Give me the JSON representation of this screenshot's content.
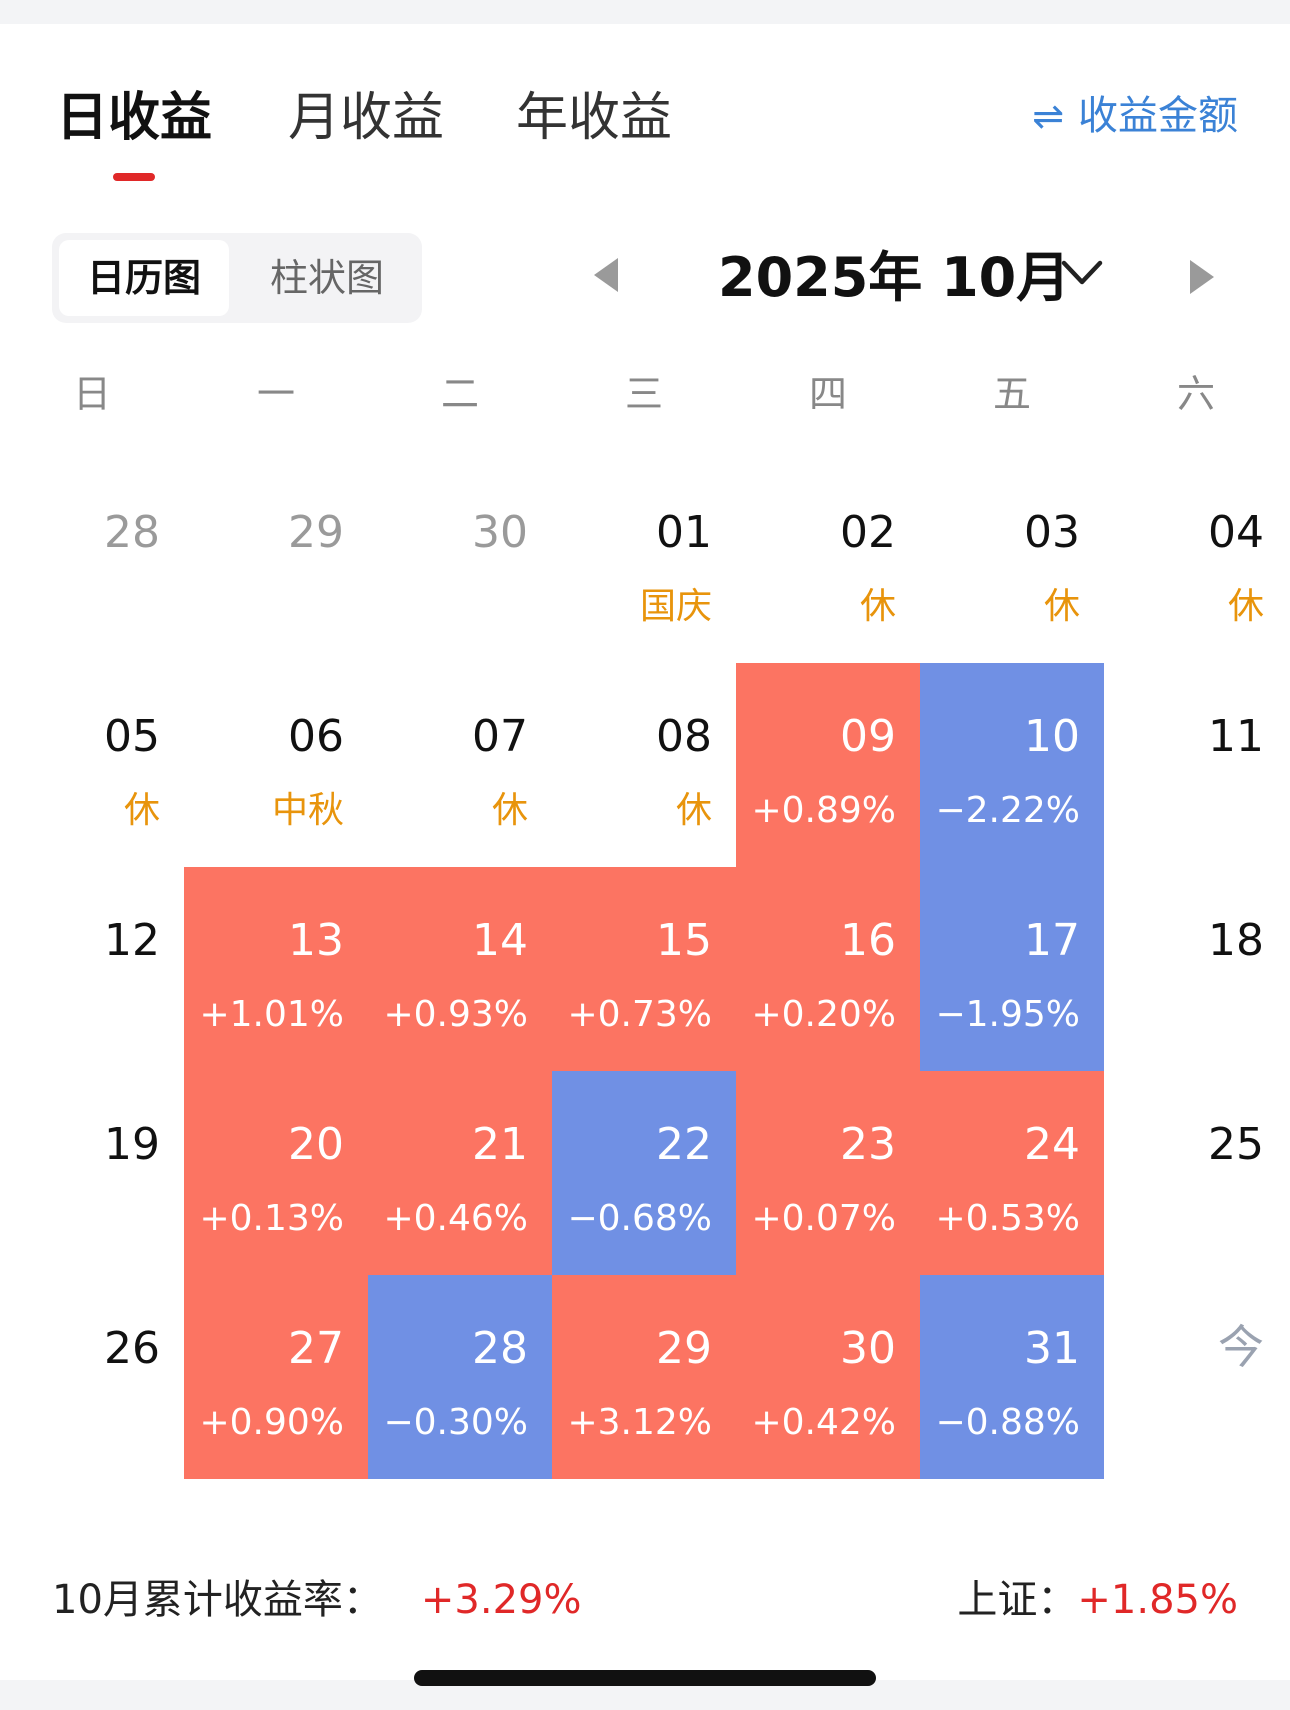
{
  "tabs": [
    {
      "label": "日收益",
      "active": true
    },
    {
      "label": "月收益",
      "active": false
    },
    {
      "label": "年收益",
      "active": false
    }
  ],
  "toggle_amount": {
    "icon": "swap-icon",
    "glyph": "⇌",
    "label": "收益金额"
  },
  "view_switch": {
    "calendar": "日历图",
    "bar": "柱状图"
  },
  "month_nav": {
    "title": "2025年 10月"
  },
  "weekdays": [
    "日",
    "一",
    "二",
    "三",
    "四",
    "五",
    "六"
  ],
  "calendar": {
    "rows": [
      [
        {
          "day": "28",
          "sub": "",
          "kind": "dim"
        },
        {
          "day": "29",
          "sub": "",
          "kind": "dim"
        },
        {
          "day": "30",
          "sub": "",
          "kind": "dim"
        },
        {
          "day": "01",
          "sub": "国庆",
          "kind": "holiday"
        },
        {
          "day": "02",
          "sub": "休",
          "kind": "holiday"
        },
        {
          "day": "03",
          "sub": "休",
          "kind": "holiday"
        },
        {
          "day": "04",
          "sub": "休",
          "kind": "holiday"
        }
      ],
      [
        {
          "day": "05",
          "sub": "休",
          "kind": "holiday"
        },
        {
          "day": "06",
          "sub": "中秋",
          "kind": "holiday"
        },
        {
          "day": "07",
          "sub": "休",
          "kind": "holiday"
        },
        {
          "day": "08",
          "sub": "休",
          "kind": "holiday"
        },
        {
          "day": "09",
          "sub": "+0.89%",
          "kind": "up"
        },
        {
          "day": "10",
          "sub": "−2.22%",
          "kind": "down"
        },
        {
          "day": "11",
          "sub": "",
          "kind": "plain"
        }
      ],
      [
        {
          "day": "12",
          "sub": "",
          "kind": "plain"
        },
        {
          "day": "13",
          "sub": "+1.01%",
          "kind": "up"
        },
        {
          "day": "14",
          "sub": "+0.93%",
          "kind": "up"
        },
        {
          "day": "15",
          "sub": "+0.73%",
          "kind": "up"
        },
        {
          "day": "16",
          "sub": "+0.20%",
          "kind": "up"
        },
        {
          "day": "17",
          "sub": "−1.95%",
          "kind": "down"
        },
        {
          "day": "18",
          "sub": "",
          "kind": "plain"
        }
      ],
      [
        {
          "day": "19",
          "sub": "",
          "kind": "plain"
        },
        {
          "day": "20",
          "sub": "+0.13%",
          "kind": "up"
        },
        {
          "day": "21",
          "sub": "+0.46%",
          "kind": "up"
        },
        {
          "day": "22",
          "sub": "−0.68%",
          "kind": "down"
        },
        {
          "day": "23",
          "sub": "+0.07%",
          "kind": "up"
        },
        {
          "day": "24",
          "sub": "+0.53%",
          "kind": "up"
        },
        {
          "day": "25",
          "sub": "",
          "kind": "plain"
        }
      ],
      [
        {
          "day": "26",
          "sub": "",
          "kind": "plain"
        },
        {
          "day": "27",
          "sub": "+0.90%",
          "kind": "up"
        },
        {
          "day": "28",
          "sub": "−0.30%",
          "kind": "down"
        },
        {
          "day": "29",
          "sub": "+3.12%",
          "kind": "up"
        },
        {
          "day": "30",
          "sub": "+0.42%",
          "kind": "up"
        },
        {
          "day": "31",
          "sub": "−0.88%",
          "kind": "down"
        },
        {
          "day": "今",
          "sub": "",
          "kind": "today"
        }
      ]
    ]
  },
  "summary": {
    "month_label": "10月累计收益率：",
    "month_value": "+3.29%",
    "index_label": "上证：",
    "index_value": "+1.85%"
  },
  "colors": {
    "up": "#fc7462",
    "down": "#7090e4",
    "holiday": "#e8940c",
    "accent": "#e02828",
    "link": "#3b82d6"
  }
}
